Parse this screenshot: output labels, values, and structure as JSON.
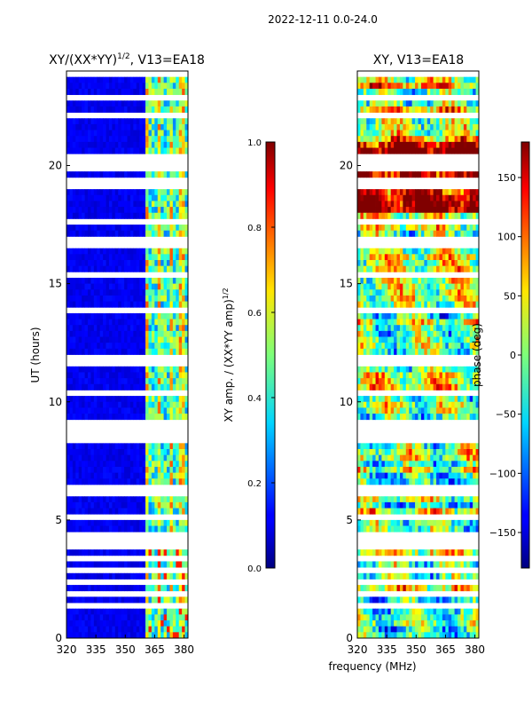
{
  "suptitle": "2022-12-11 0.0-24.0",
  "shared_xlabel": "frequency (MHz)",
  "chart_data": [
    {
      "type": "heatmap",
      "title_main": "XY/(XX*YY)",
      "title_sup": "1/2",
      "title_tail": ", V13=EA18",
      "ylabel": "UT (hours)",
      "xlabel": "frequency (MHz)",
      "x_ticks": [
        320,
        335,
        350,
        365,
        380
      ],
      "y_ticks": [
        0,
        5,
        10,
        15,
        20
      ],
      "xlim": [
        320,
        382
      ],
      "ylim": [
        0,
        24
      ],
      "colorbar": {
        "label_main": "XY amp. / (XX*YY amp)",
        "label_sup": "1/2",
        "ticks": [
          "0.0",
          "0.2",
          "0.4",
          "0.6",
          "0.8",
          "1.0"
        ],
        "range": [
          0.0,
          1.0
        ],
        "colormap": "jet"
      }
    },
    {
      "type": "heatmap",
      "title_main": "XY, V13=EA18",
      "xlabel": "frequency (MHz)",
      "x_ticks": [
        320,
        335,
        350,
        365,
        380
      ],
      "y_ticks": [
        0,
        5,
        10,
        15,
        20
      ],
      "xlim": [
        320,
        382
      ],
      "ylim": [
        0,
        24
      ],
      "colorbar": {
        "label_main": "phase (deg)",
        "ticks": [
          "−150",
          "−100",
          "−50",
          "0",
          "50",
          "100",
          "150"
        ],
        "tick_values": [
          -150,
          -100,
          -50,
          0,
          50,
          100,
          150
        ],
        "range": [
          -180,
          180
        ],
        "colormap": "jet"
      }
    }
  ]
}
